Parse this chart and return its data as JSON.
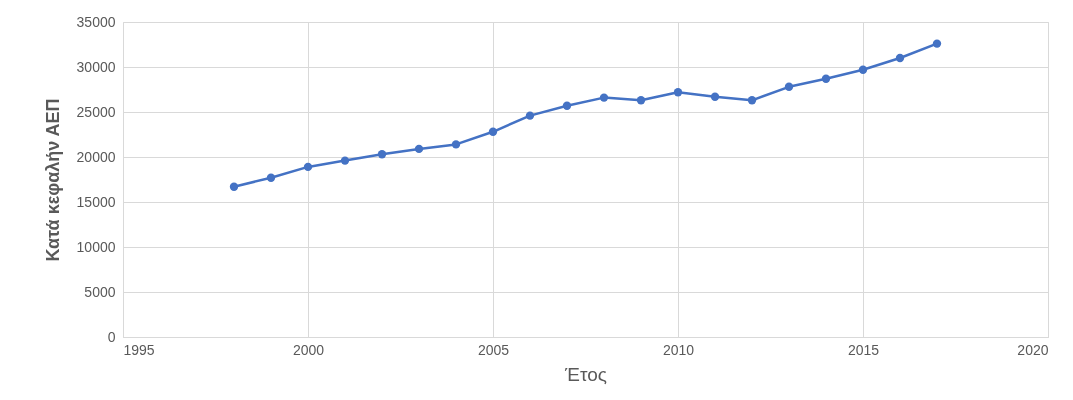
{
  "chart_data": {
    "type": "line",
    "xlabel": "Έτος",
    "ylabel": "Κατά κεφαλήν ΑΕΠ",
    "x": [
      1998,
      1999,
      2000,
      2001,
      2002,
      2003,
      2004,
      2005,
      2006,
      2007,
      2008,
      2009,
      2010,
      2011,
      2012,
      2013,
      2014,
      2015,
      2016,
      2017
    ],
    "series": [
      {
        "color": "#4472c4",
        "values": [
          16700,
          17700,
          18900,
          19600,
          20300,
          20900,
          21400,
          22800,
          24600,
          25700,
          26600,
          26300,
          27200,
          26700,
          26300,
          27800,
          28700,
          29700,
          31000,
          32600
        ]
      }
    ],
    "xlim": [
      1995,
      2020
    ],
    "xticks": [
      1995,
      2000,
      2005,
      2010,
      2015,
      2020
    ],
    "ylim": [
      0,
      35000
    ],
    "yticks": [
      0,
      5000,
      10000,
      15000,
      20000,
      25000,
      30000,
      35000
    ],
    "grid": true,
    "marker": "circle",
    "line_style": "solid",
    "legend": false
  }
}
